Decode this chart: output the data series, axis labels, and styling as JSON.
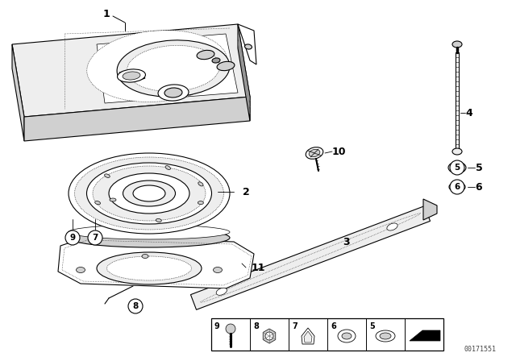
{
  "bg_color": "#ffffff",
  "line_color": "#000000",
  "watermark": "00171551",
  "fig_width": 6.4,
  "fig_height": 4.48,
  "dpi": 100,
  "gray_light": "#eeeeee",
  "gray_mid": "#d0d0d0",
  "gray_dark": "#a0a0a0",
  "dot_gray": "#888888"
}
